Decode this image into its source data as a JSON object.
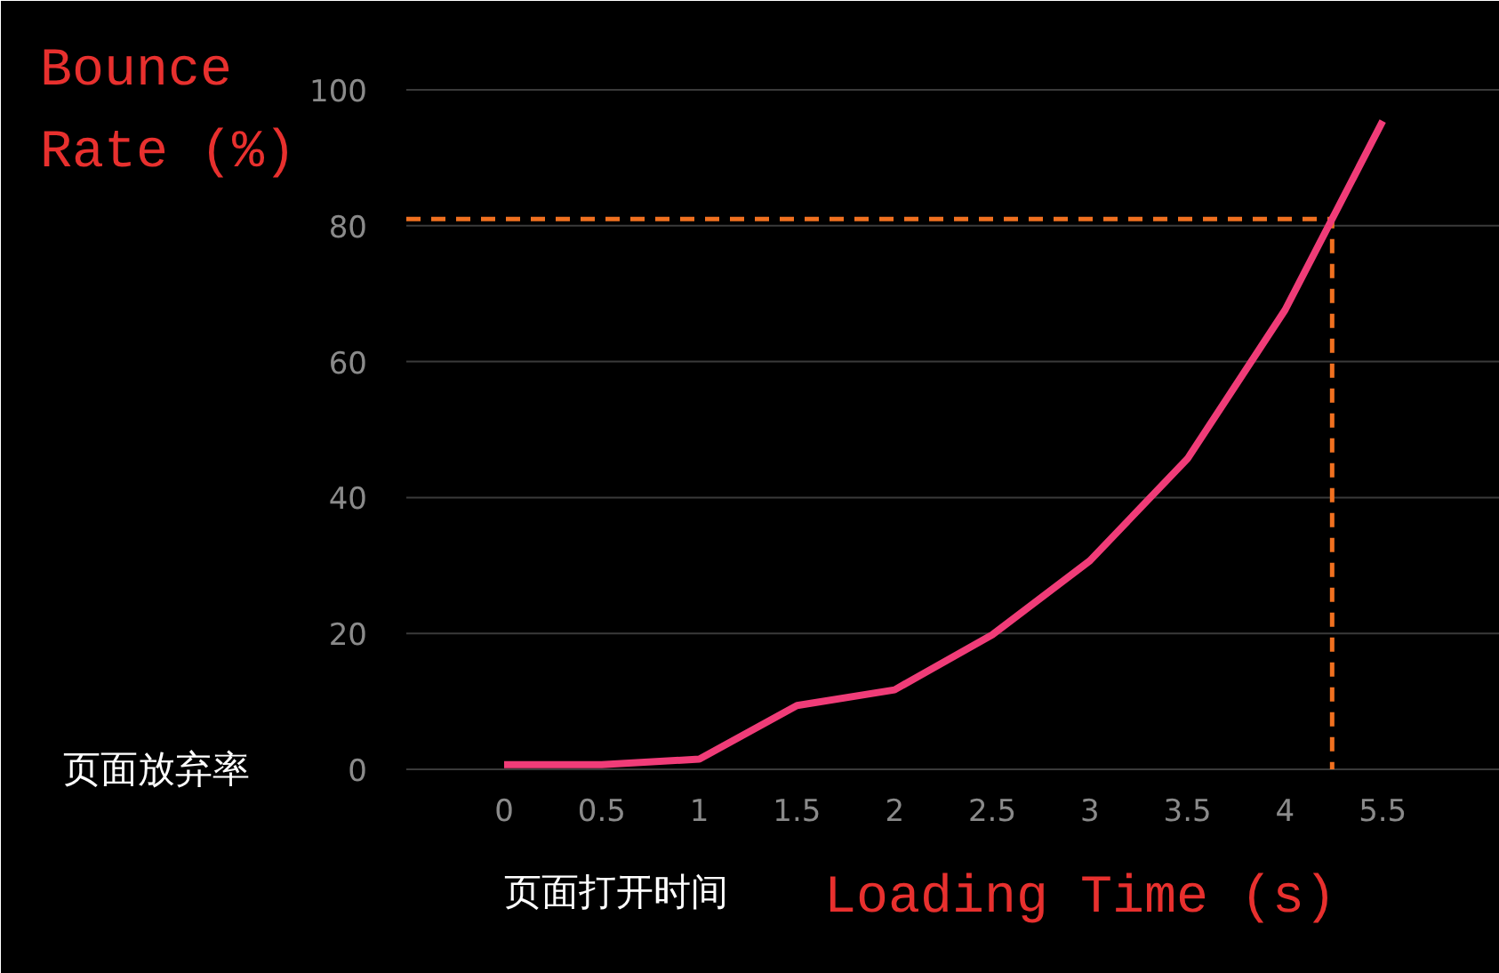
{
  "chart_data": {
    "type": "line",
    "xlabel": "Loading Time (s)",
    "ylabel": "Bounce Rate (%)",
    "annotations": [
      "页面放弃率",
      "页面打开时间"
    ],
    "categories": [
      "0",
      "0.5",
      "1",
      "1.5",
      "2",
      "2.5",
      "3",
      "3.5",
      "4",
      "5.5"
    ],
    "series": [
      {
        "color": "#f03c78",
        "values": [
          0.7,
          0.7,
          1.5,
          9.4,
          11.7,
          19.8,
          30.7,
          45.7,
          67.6,
          95.4
        ]
      }
    ],
    "ylim": [
      0,
      100
    ],
    "yticks": [
      0,
      20,
      40,
      60,
      80,
      100
    ],
    "grid": "y",
    "marker": "none",
    "line_style": "solid",
    "ref_lines": [
      {
        "axis": "y",
        "value": 81,
        "color": "#f07020",
        "line_style": "dashed"
      }
    ]
  }
}
